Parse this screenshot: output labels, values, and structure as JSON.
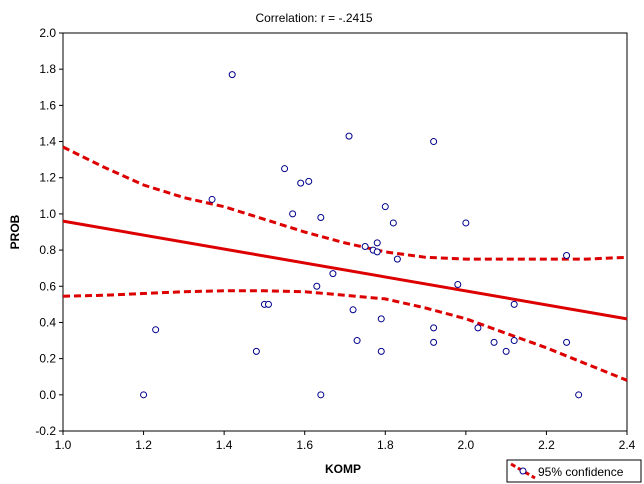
{
  "chart_data": {
    "type": "scatter",
    "title": "Correlation: r = -.2415",
    "xlabel": "KOMP",
    "ylabel": "PROB",
    "xlim": [
      1.0,
      2.4
    ],
    "ylim": [
      -0.2,
      2.0
    ],
    "x_ticks": [
      "1.0",
      "1.2",
      "1.4",
      "1.6",
      "1.8",
      "2.0",
      "2.2",
      "2.4"
    ],
    "y_ticks": [
      "-0.2",
      "0.0",
      "0.2",
      "0.4",
      "0.6",
      "0.8",
      "1.0",
      "1.2",
      "1.4",
      "1.6",
      "1.8",
      "2.0"
    ],
    "grid": false,
    "legend": {
      "label": "95% confidence",
      "placement": "bottom-right"
    },
    "colors": {
      "points": "#00008b",
      "fit": "#dd0000"
    },
    "points": [
      {
        "x": 1.2,
        "y": 0.0
      },
      {
        "x": 1.23,
        "y": 0.36
      },
      {
        "x": 1.37,
        "y": 1.08
      },
      {
        "x": 1.42,
        "y": 1.77
      },
      {
        "x": 1.48,
        "y": 0.24
      },
      {
        "x": 1.5,
        "y": 0.5
      },
      {
        "x": 1.51,
        "y": 0.5
      },
      {
        "x": 1.55,
        "y": 1.25
      },
      {
        "x": 1.57,
        "y": 1.0
      },
      {
        "x": 1.59,
        "y": 1.17
      },
      {
        "x": 1.61,
        "y": 1.18
      },
      {
        "x": 1.63,
        "y": 0.6
      },
      {
        "x": 1.64,
        "y": 0.98
      },
      {
        "x": 1.64,
        "y": 0.0
      },
      {
        "x": 1.67,
        "y": 0.67
      },
      {
        "x": 1.71,
        "y": 1.43
      },
      {
        "x": 1.72,
        "y": 0.47
      },
      {
        "x": 1.73,
        "y": 0.3
      },
      {
        "x": 1.75,
        "y": 0.82
      },
      {
        "x": 1.77,
        "y": 0.8
      },
      {
        "x": 1.78,
        "y": 0.84
      },
      {
        "x": 1.78,
        "y": 0.79
      },
      {
        "x": 1.79,
        "y": 0.42
      },
      {
        "x": 1.79,
        "y": 0.24
      },
      {
        "x": 1.8,
        "y": 1.04
      },
      {
        "x": 1.82,
        "y": 0.95
      },
      {
        "x": 1.83,
        "y": 0.75
      },
      {
        "x": 1.92,
        "y": 1.4
      },
      {
        "x": 1.92,
        "y": 0.37
      },
      {
        "x": 1.92,
        "y": 0.29
      },
      {
        "x": 1.98,
        "y": 0.61
      },
      {
        "x": 2.0,
        "y": 0.95
      },
      {
        "x": 2.03,
        "y": 0.37
      },
      {
        "x": 2.07,
        "y": 0.29
      },
      {
        "x": 2.1,
        "y": 0.24
      },
      {
        "x": 2.12,
        "y": 0.5
      },
      {
        "x": 2.12,
        "y": 0.3
      },
      {
        "x": 2.25,
        "y": 0.77
      },
      {
        "x": 2.25,
        "y": 0.29
      },
      {
        "x": 2.28,
        "y": 0.0
      }
    ],
    "fit_line": [
      {
        "x": 1.0,
        "y": 0.96
      },
      {
        "x": 2.4,
        "y": 0.42
      }
    ],
    "ci_upper": [
      {
        "x": 1.0,
        "y": 1.37
      },
      {
        "x": 1.1,
        "y": 1.26
      },
      {
        "x": 1.2,
        "y": 1.16
      },
      {
        "x": 1.3,
        "y": 1.09
      },
      {
        "x": 1.4,
        "y": 1.04
      },
      {
        "x": 1.5,
        "y": 0.97
      },
      {
        "x": 1.6,
        "y": 0.9
      },
      {
        "x": 1.7,
        "y": 0.84
      },
      {
        "x": 1.8,
        "y": 0.79
      },
      {
        "x": 1.9,
        "y": 0.76
      },
      {
        "x": 2.0,
        "y": 0.75
      },
      {
        "x": 2.1,
        "y": 0.75
      },
      {
        "x": 2.2,
        "y": 0.75
      },
      {
        "x": 2.3,
        "y": 0.75
      },
      {
        "x": 2.4,
        "y": 0.76
      }
    ],
    "ci_lower": [
      {
        "x": 1.0,
        "y": 0.545
      },
      {
        "x": 1.1,
        "y": 0.55
      },
      {
        "x": 1.2,
        "y": 0.56
      },
      {
        "x": 1.3,
        "y": 0.57
      },
      {
        "x": 1.4,
        "y": 0.575
      },
      {
        "x": 1.5,
        "y": 0.575
      },
      {
        "x": 1.6,
        "y": 0.57
      },
      {
        "x": 1.7,
        "y": 0.55
      },
      {
        "x": 1.8,
        "y": 0.53
      },
      {
        "x": 1.9,
        "y": 0.48
      },
      {
        "x": 2.0,
        "y": 0.42
      },
      {
        "x": 2.1,
        "y": 0.34
      },
      {
        "x": 2.2,
        "y": 0.26
      },
      {
        "x": 2.3,
        "y": 0.17
      },
      {
        "x": 2.4,
        "y": 0.08
      }
    ]
  }
}
